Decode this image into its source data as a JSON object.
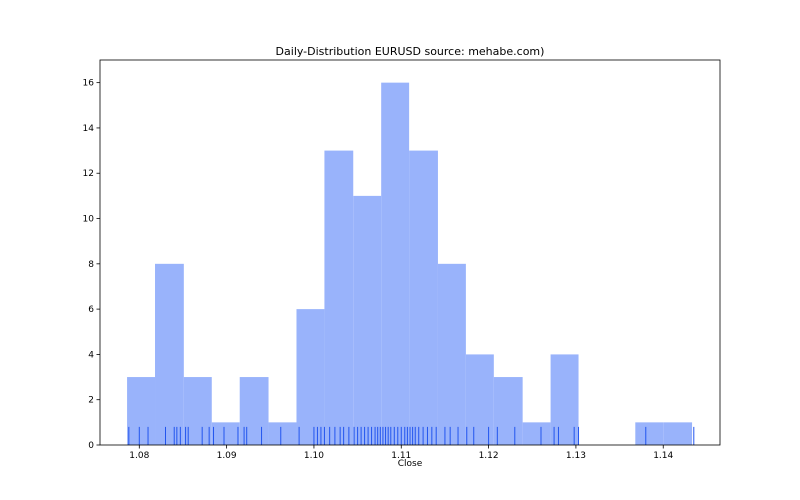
{
  "chart_data": {
    "type": "bar",
    "title": "Daily-Distribution EURUSD source: mehabe.com)",
    "xlabel": "Close",
    "ylabel": "",
    "xlim": [
      1.0755,
      1.1465
    ],
    "ylim": [
      0,
      17
    ],
    "xticks": [
      1.08,
      1.09,
      1.1,
      1.11,
      1.12,
      1.13,
      1.14
    ],
    "xtick_labels": [
      "1.08",
      "1.09",
      "1.10",
      "1.11",
      "1.12",
      "1.13",
      "1.14"
    ],
    "yticks": [
      0,
      2,
      4,
      6,
      8,
      10,
      12,
      14,
      16
    ],
    "ytick_labels": [
      "0",
      "2",
      "4",
      "6",
      "8",
      "10",
      "12",
      "14",
      "16"
    ],
    "grid": false,
    "bar_color": "#99b3fb",
    "rug_color": "#2255ee",
    "bin_edges": [
      1.0786,
      1.0818,
      1.0851,
      1.0883,
      1.0915,
      1.0948,
      1.098,
      1.1012,
      1.1045,
      1.1077,
      1.1109,
      1.1142,
      1.1174,
      1.1206,
      1.1239,
      1.1271,
      1.1303,
      1.1336,
      1.1368,
      1.14,
      1.1433
    ],
    "values": [
      3,
      8,
      3,
      1,
      3,
      1,
      6,
      13,
      11,
      16,
      13,
      8,
      4,
      3,
      1,
      4,
      0,
      0,
      1,
      1
    ],
    "rug_y": 0.8,
    "rug_x": [
      1.0788,
      1.08,
      1.081,
      1.083,
      1.084,
      1.0843,
      1.0847,
      1.0853,
      1.0856,
      1.0872,
      1.088,
      1.0885,
      1.0897,
      1.0913,
      1.092,
      1.0923,
      1.094,
      1.0962,
      1.0983,
      1.1,
      1.1004,
      1.1008,
      1.1012,
      1.1018,
      1.1024,
      1.103,
      1.1034,
      1.104,
      1.1046,
      1.105,
      1.1054,
      1.1058,
      1.1062,
      1.1066,
      1.107,
      1.1073,
      1.1076,
      1.1079,
      1.1082,
      1.1085,
      1.1088,
      1.1092,
      1.1096,
      1.11,
      1.1104,
      1.1107,
      1.111,
      1.1113,
      1.1116,
      1.112,
      1.1125,
      1.113,
      1.1135,
      1.114,
      1.115,
      1.1156,
      1.1165,
      1.1175,
      1.1183,
      1.12,
      1.121,
      1.123,
      1.126,
      1.1275,
      1.128,
      1.1298,
      1.1303,
      1.138,
      1.1435
    ]
  }
}
